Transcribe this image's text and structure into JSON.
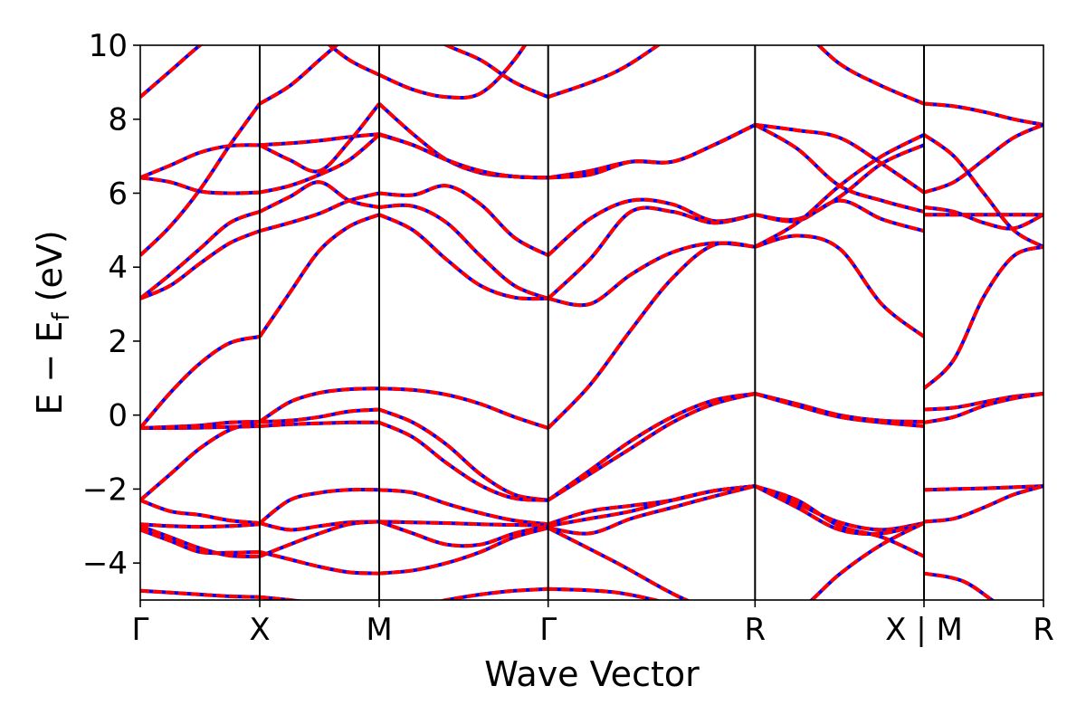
{
  "chart_data": {
    "type": "line",
    "xlabel": "Wave Vector",
    "ylabel": "E − E",
    "ylabel_sub": "f",
    "ylabel_unit": "(eV)",
    "ylim": [
      -5,
      10
    ],
    "yticks": [
      -4,
      -2,
      0,
      2,
      4,
      6,
      8,
      10
    ],
    "ytick_labels": [
      "−4",
      "−2",
      "0",
      "2",
      "4",
      "6",
      "8",
      "10"
    ],
    "kpath": [
      {
        "label": "Γ",
        "x": 0.0
      },
      {
        "label": "X",
        "x": 0.5
      },
      {
        "label": "M",
        "x": 1.0
      },
      {
        "label": "Γ",
        "x": 1.7071
      },
      {
        "label": "R",
        "x": 2.5731
      },
      {
        "label": "X | M",
        "x": 3.2802
      },
      {
        "label": "R",
        "x": 3.7802
      }
    ],
    "xlim": [
      0,
      3.7802
    ],
    "grid": false,
    "legend": "none",
    "colors": {
      "series_a": "#ff0000",
      "series_b": "#0000ff"
    },
    "series": [
      {
        "segments": [
          {
            "k": 0,
            "e": [
              8.6,
              9.3,
              10.0,
              10.6,
              11.0
            ]
          },
          {
            "k": 0,
            "e": [
              6.42,
              6.3,
              6.05,
              6.0,
              6.02
            ]
          },
          {
            "k": 0,
            "e": [
              6.42,
              6.75,
              7.1,
              7.28,
              7.3
            ]
          },
          {
            "k": 0,
            "e": [
              4.32,
              5.1,
              6.1,
              7.3,
              8.42
            ]
          },
          {
            "k": 0,
            "e": [
              3.15,
              3.5,
              4.1,
              4.65,
              4.98
            ]
          },
          {
            "k": 0,
            "e": [
              3.15,
              3.8,
              4.5,
              5.2,
              5.5
            ]
          },
          {
            "k": 0,
            "e": [
              -0.35,
              0.6,
              1.4,
              1.95,
              2.12
            ]
          },
          {
            "k": 0,
            "e": [
              -0.35,
              -0.35,
              -0.34,
              -0.32,
              -0.3
            ]
          },
          {
            "k": 0,
            "e": [
              -0.35,
              -0.32,
              -0.28,
              -0.2,
              -0.18
            ]
          },
          {
            "k": 0,
            "e": [
              -2.3,
              -1.6,
              -0.9,
              -0.4,
              -0.18
            ]
          },
          {
            "k": 0,
            "e": [
              -2.3,
              -2.6,
              -2.7,
              -2.85,
              -2.92
            ]
          },
          {
            "k": 0,
            "e": [
              -2.95,
              -3.0,
              -3.02,
              -3.0,
              -2.95
            ]
          },
          {
            "k": 0,
            "e": [
              -3.0,
              -3.3,
              -3.6,
              -3.8,
              -3.82
            ]
          },
          {
            "k": 0,
            "e": [
              -3.1,
              -3.4,
              -3.7,
              -3.72,
              -3.7
            ]
          },
          {
            "k": 0,
            "e": [
              -4.75,
              -4.8,
              -4.85,
              -4.9,
              -4.92
            ]
          },
          {
            "k": 1,
            "e": [
              11.0,
              10.6,
              10.2,
              9.6,
              9.2
            ]
          },
          {
            "k": 1,
            "e": [
              8.42,
              8.9,
              9.6,
              10.3,
              11.0
            ]
          },
          {
            "k": 1,
            "e": [
              7.3,
              7.35,
              7.42,
              7.52,
              7.6
            ]
          },
          {
            "k": 1,
            "e": [
              7.3,
              6.9,
              6.6,
              7.4,
              8.42
            ]
          },
          {
            "k": 1,
            "e": [
              6.02,
              6.2,
              6.5,
              6.9,
              7.58
            ]
          },
          {
            "k": 1,
            "e": [
              5.5,
              5.9,
              6.3,
              5.8,
              5.62
            ]
          },
          {
            "k": 1,
            "e": [
              4.98,
              5.2,
              5.45,
              5.8,
              6.0
            ]
          },
          {
            "k": 1,
            "e": [
              2.12,
              3.3,
              4.45,
              5.1,
              5.42
            ]
          },
          {
            "k": 1,
            "e": [
              -0.18,
              0.35,
              0.6,
              0.7,
              0.72
            ]
          },
          {
            "k": 1,
            "e": [
              -0.18,
              -0.15,
              -0.05,
              0.1,
              0.15
            ]
          },
          {
            "k": 1,
            "e": [
              -0.3,
              -0.25,
              -0.22,
              -0.2,
              -0.2
            ]
          },
          {
            "k": 1,
            "e": [
              -2.92,
              -2.3,
              -2.1,
              -2.02,
              -2.02
            ]
          },
          {
            "k": 1,
            "e": [
              -2.92,
              -3.1,
              -3.0,
              -2.9,
              -2.88
            ]
          },
          {
            "k": 1,
            "e": [
              -3.82,
              -3.5,
              -3.2,
              -2.95,
              -2.88
            ]
          },
          {
            "k": 1,
            "e": [
              -3.7,
              -3.9,
              -4.1,
              -4.25,
              -4.28
            ]
          },
          {
            "k": 1,
            "e": [
              -4.92,
              -5.0,
              -5.1,
              -5.2,
              -5.3
            ]
          },
          {
            "k": 2,
            "e": [
              9.2,
              8.8,
              8.6,
              8.7,
              9.6,
              11.0
            ]
          },
          {
            "k": 2,
            "e": [
              11.0,
              10.5,
              10.0,
              9.6,
              9.0,
              8.6
            ]
          },
          {
            "k": 2,
            "e": [
              7.6,
              7.3,
              6.9,
              6.6,
              6.45,
              6.42
            ]
          },
          {
            "k": 2,
            "e": [
              8.42,
              7.6,
              6.9,
              6.55,
              6.45,
              6.42
            ]
          },
          {
            "k": 2,
            "e": [
              7.58,
              7.3,
              6.9,
              6.6,
              6.45,
              6.42
            ]
          },
          {
            "k": 2,
            "e": [
              6.0,
              5.95,
              6.2,
              5.7,
              4.8,
              4.32
            ]
          },
          {
            "k": 2,
            "e": [
              5.62,
              5.65,
              5.2,
              4.3,
              3.5,
              3.15
            ]
          },
          {
            "k": 2,
            "e": [
              5.42,
              5.0,
              4.2,
              3.5,
              3.18,
              3.15
            ]
          },
          {
            "k": 2,
            "e": [
              0.72,
              0.68,
              0.55,
              0.3,
              -0.05,
              -0.35
            ]
          },
          {
            "k": 2,
            "e": [
              0.15,
              -0.2,
              -0.8,
              -1.6,
              -2.15,
              -2.3
            ]
          },
          {
            "k": 2,
            "e": [
              -0.2,
              -0.6,
              -1.3,
              -1.9,
              -2.25,
              -2.3
            ]
          },
          {
            "k": 2,
            "e": [
              -2.02,
              -2.1,
              -2.4,
              -2.65,
              -2.85,
              -2.95
            ]
          },
          {
            "k": 2,
            "e": [
              -2.88,
              -2.9,
              -2.92,
              -2.95,
              -2.97,
              -2.98
            ]
          },
          {
            "k": 2,
            "e": [
              -2.88,
              -3.2,
              -3.5,
              -3.5,
              -3.2,
              -3.0
            ]
          },
          {
            "k": 2,
            "e": [
              -4.28,
              -4.2,
              -4.0,
              -3.7,
              -3.3,
              -3.05
            ]
          },
          {
            "k": 2,
            "e": [
              -5.3,
              -5.2,
              -5.0,
              -4.85,
              -4.75,
              -4.7
            ]
          },
          {
            "k": 3,
            "e": [
              8.6,
              9.3,
              10.5,
              11.5
            ]
          },
          {
            "k": 3,
            "e": [
              6.42,
              6.6,
              6.85,
              6.85,
              7.3,
              7.85
            ]
          },
          {
            "k": 3,
            "e": [
              6.42,
              6.5,
              6.85,
              6.85,
              7.3,
              7.85
            ]
          },
          {
            "k": 3,
            "e": [
              4.32,
              5.3,
              5.8,
              5.7,
              5.25,
              5.42
            ]
          },
          {
            "k": 3,
            "e": [
              3.15,
              4.2,
              5.5,
              5.5,
              5.2,
              5.42
            ]
          },
          {
            "k": 3,
            "e": [
              3.15,
              3.0,
              3.8,
              4.4,
              4.65,
              4.55
            ]
          },
          {
            "k": 3,
            "e": [
              -0.35,
              0.8,
              2.3,
              3.7,
              4.6,
              4.55
            ]
          },
          {
            "k": 3,
            "e": [
              -2.3,
              -1.6,
              -0.9,
              -0.2,
              0.3,
              0.58
            ]
          },
          {
            "k": 3,
            "e": [
              -2.3,
              -1.5,
              -0.7,
              -0.05,
              0.4,
              0.58
            ]
          },
          {
            "k": 3,
            "e": [
              -2.95,
              -2.6,
              -2.45,
              -2.3,
              -2.05,
              -1.92
            ]
          },
          {
            "k": 3,
            "e": [
              -3.0,
              -2.8,
              -2.6,
              -2.3,
              -2.05,
              -1.92
            ]
          },
          {
            "k": 3,
            "e": [
              -3.05,
              -3.2,
              -2.8,
              -2.5,
              -2.2,
              -1.92
            ]
          },
          {
            "k": 3,
            "e": [
              -4.7,
              -4.8,
              -5.2,
              -5.6
            ]
          },
          {
            "k": 3,
            "e": [
              -3.05,
              -4.0,
              -5.0,
              -5.6
            ]
          },
          {
            "k": 4,
            "e": [
              11.0,
              10.5,
              9.5,
              8.9,
              8.42
            ]
          },
          {
            "k": 4,
            "e": [
              7.85,
              7.7,
              7.5,
              6.8,
              6.02
            ]
          },
          {
            "k": 4,
            "e": [
              7.85,
              7.2,
              6.2,
              5.8,
              5.5
            ]
          },
          {
            "k": 4,
            "e": [
              5.42,
              5.3,
              5.9,
              6.8,
              7.3
            ]
          },
          {
            "k": 4,
            "e": [
              5.42,
              5.25,
              5.8,
              5.3,
              4.98
            ]
          },
          {
            "k": 4,
            "e": [
              4.55,
              5.2,
              6.2,
              7.0,
              7.58
            ]
          },
          {
            "k": 4,
            "e": [
              4.55,
              4.85,
              4.5,
              3.0,
              2.12
            ]
          },
          {
            "k": 4,
            "e": [
              0.58,
              0.3,
              0.0,
              -0.15,
              -0.18
            ]
          },
          {
            "k": 4,
            "e": [
              0.58,
              0.25,
              -0.05,
              -0.2,
              -0.3
            ]
          },
          {
            "k": 4,
            "e": [
              -1.92,
              -2.4,
              -2.9,
              -3.1,
              -2.92
            ]
          },
          {
            "k": 4,
            "e": [
              -1.92,
              -2.5,
              -3.1,
              -3.2,
              -2.92
            ]
          },
          {
            "k": 4,
            "e": [
              -1.92,
              -2.3,
              -3.0,
              -3.3,
              -3.82
            ]
          },
          {
            "k": 4,
            "e": [
              -5.6,
              -5.3,
              -4.3,
              -3.5,
              -2.92
            ]
          },
          {
            "k": 5,
            "e": [
              8.42,
              8.35,
              8.2,
              8.0,
              7.85
            ]
          },
          {
            "k": 5,
            "e": [
              7.58,
              7.0,
              6.0,
              5.0,
              4.55
            ]
          },
          {
            "k": 5,
            "e": [
              6.02,
              6.3,
              6.9,
              7.5,
              7.85
            ]
          },
          {
            "k": 5,
            "e": [
              5.62,
              5.5,
              5.2,
              5.05,
              5.42
            ]
          },
          {
            "k": 5,
            "e": [
              5.42,
              5.42,
              5.42,
              5.42,
              5.42
            ]
          },
          {
            "k": 5,
            "e": [
              0.72,
              1.5,
              3.2,
              4.3,
              4.55
            ]
          },
          {
            "k": 5,
            "e": [
              0.15,
              0.2,
              0.35,
              0.5,
              0.58
            ]
          },
          {
            "k": 5,
            "e": [
              -0.2,
              -0.05,
              0.25,
              0.45,
              0.58
            ]
          },
          {
            "k": 5,
            "e": [
              -2.02,
              -2.0,
              -1.98,
              -1.95,
              -1.92
            ]
          },
          {
            "k": 5,
            "e": [
              -2.88,
              -2.8,
              -2.5,
              -2.15,
              -1.92
            ]
          },
          {
            "k": 5,
            "e": [
              -4.28,
              -4.5,
              -5.2,
              -5.6
            ]
          }
        ]
      }
    ]
  }
}
